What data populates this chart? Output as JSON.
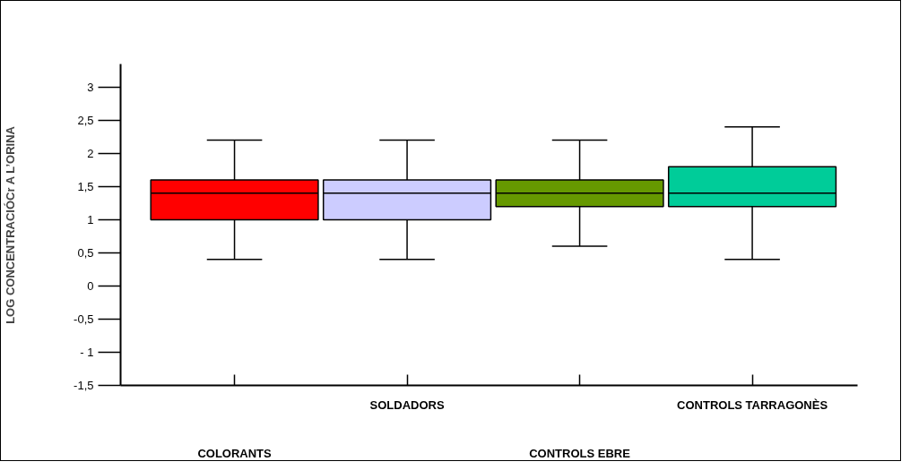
{
  "chart_data": {
    "type": "box",
    "ylabel": "LOG CONCENTRACIÓCr A L’ORINA",
    "categories": [
      "COLORANTS",
      "SOLDADORS",
      "CONTROLS EBRE",
      "CONTROLS TARRAGONÈS"
    ],
    "colors": [
      "#ff0000",
      "#ccccff",
      "#669900",
      "#00cc99"
    ],
    "boxes": [
      {
        "low": 0.4,
        "q1": 1.0,
        "median": 1.4,
        "q3": 1.6,
        "high": 2.2
      },
      {
        "low": 0.4,
        "q1": 1.0,
        "median": 1.4,
        "q3": 1.6,
        "high": 2.2
      },
      {
        "low": 0.6,
        "q1": 1.2,
        "median": 1.4,
        "q3": 1.6,
        "high": 2.2
      },
      {
        "low": 0.4,
        "q1": 1.2,
        "median": 1.4,
        "q3": 1.8,
        "high": 2.4
      }
    ],
    "ylim": [
      -1.5,
      3.35
    ],
    "yticks": [
      {
        "value": 3,
        "label": "3"
      },
      {
        "value": 2.5,
        "label": "2,5"
      },
      {
        "value": 2,
        "label": "2"
      },
      {
        "value": 1.5,
        "label": "1,5"
      },
      {
        "value": 1,
        "label": "1"
      },
      {
        "value": 0.5,
        "label": "0,5"
      },
      {
        "value": 0,
        "label": "0"
      },
      {
        "value": -0.5,
        "label": "-0,5"
      },
      {
        "value": -1,
        "label": "- 1"
      },
      {
        "value": -1.5,
        "label": "-1,5"
      }
    ],
    "grid": false
  }
}
